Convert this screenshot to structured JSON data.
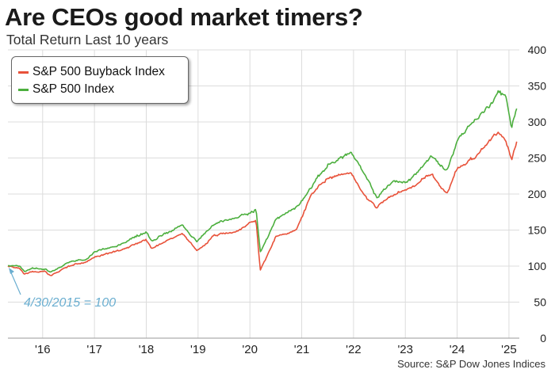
{
  "title": "Are CEOs good market timers?",
  "subtitle": "Total Return Last 10 years",
  "source": "Source: S&P Dow Jones Indices",
  "annotation": "4/30/2015 = 100",
  "colors": {
    "buyback": "#e8523a",
    "index": "#4caf3e",
    "grid": "#dcdcdc",
    "annotation": "#6aaed0"
  },
  "chart_data": {
    "type": "line",
    "title": "Are CEOs good market timers?",
    "subtitle": "Total Return Last 10 years",
    "ylim": [
      0,
      400
    ],
    "yticks": [
      0,
      50,
      100,
      150,
      200,
      250,
      300,
      350,
      400
    ],
    "y_axis_side": "right",
    "xlim": [
      2015.33,
      2025.2
    ],
    "xticks": [
      {
        "label": "'16",
        "x": 2016
      },
      {
        "label": "'17",
        "x": 2017
      },
      {
        "label": "'18",
        "x": 2018
      },
      {
        "label": "'19",
        "x": 2019
      },
      {
        "label": "'20",
        "x": 2020
      },
      {
        "label": "'21",
        "x": 2021
      },
      {
        "label": "'22",
        "x": 2022
      },
      {
        "label": "'23",
        "x": 2023
      },
      {
        "label": "'24",
        "x": 2024
      },
      {
        "label": "'25",
        "x": 2025
      }
    ],
    "grid": true,
    "legend_position": "top-left",
    "series": [
      {
        "name": "S&P 500 Buyback Index",
        "color": "#e8523a",
        "x": [
          2015.33,
          2015.55,
          2015.65,
          2015.8,
          2016.05,
          2016.15,
          2016.5,
          2016.85,
          2017.0,
          2017.5,
          2018.0,
          2018.1,
          2018.7,
          2018.98,
          2019.3,
          2019.7,
          2020.0,
          2020.12,
          2020.2,
          2020.5,
          2020.9,
          2021.2,
          2021.5,
          2021.95,
          2022.2,
          2022.45,
          2022.75,
          2023.0,
          2023.2,
          2023.5,
          2023.8,
          2024.0,
          2024.3,
          2024.6,
          2024.8,
          2024.95,
          2025.05,
          2025.15
        ],
        "values": [
          100,
          97,
          88,
          93,
          92,
          86,
          100,
          106,
          112,
          122,
          137,
          125,
          145,
          120,
          142,
          148,
          160,
          162,
          95,
          140,
          150,
          202,
          222,
          228,
          200,
          182,
          200,
          205,
          212,
          228,
          200,
          236,
          250,
          270,
          287,
          270,
          245,
          270
        ]
      },
      {
        "name": "S&P 500 Index",
        "color": "#4caf3e",
        "x": [
          2015.33,
          2015.55,
          2015.65,
          2015.8,
          2016.05,
          2016.15,
          2016.5,
          2016.85,
          2017.0,
          2017.5,
          2018.0,
          2018.1,
          2018.7,
          2018.98,
          2019.3,
          2019.7,
          2020.0,
          2020.12,
          2020.2,
          2020.5,
          2020.9,
          2021.2,
          2021.5,
          2021.95,
          2022.2,
          2022.45,
          2022.75,
          2023.0,
          2023.2,
          2023.5,
          2023.8,
          2024.0,
          2024.3,
          2024.6,
          2024.8,
          2024.95,
          2025.05,
          2025.15
        ],
        "values": [
          100,
          100,
          92,
          97,
          97,
          92,
          105,
          110,
          118,
          131,
          147,
          135,
          158,
          133,
          158,
          167,
          175,
          178,
          118,
          165,
          182,
          212,
          240,
          258,
          228,
          195,
          218,
          215,
          228,
          252,
          232,
          275,
          300,
          320,
          345,
          332,
          292,
          322
        ]
      }
    ]
  }
}
